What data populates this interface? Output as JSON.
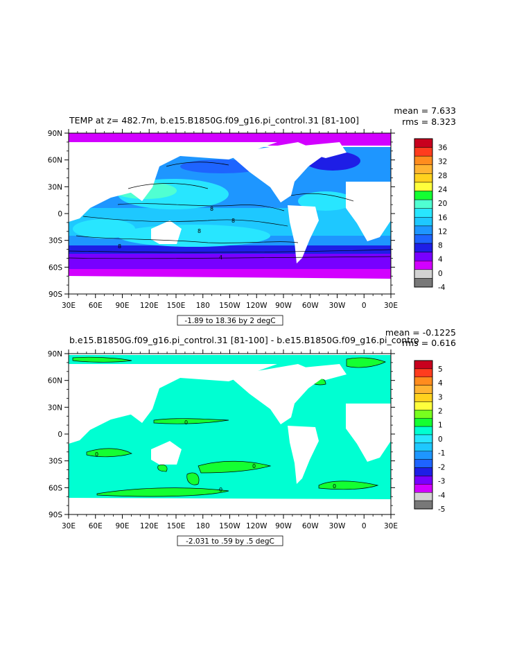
{
  "chart_data": [
    {
      "type": "heatmap",
      "title": "TEMP at z= 482.7m, b.e15.B1850G.f09_g16.pi_control.31 [81-100]",
      "stats": {
        "mean": "mean = 7.633",
        "rms": "rms = 8.323"
      },
      "x_ticks": [
        "30E",
        "60E",
        "90E",
        "120E",
        "150E",
        "180",
        "150W",
        "120W",
        "90W",
        "60W",
        "30W",
        "0",
        "30E"
      ],
      "y_ticks": [
        "90N",
        "60N",
        "30N",
        "0",
        "30S",
        "60S",
        "90S"
      ],
      "xlim": [
        30,
        390
      ],
      "ylim": [
        -90,
        90
      ],
      "contour_info": "-1.89 to 18.36 by 2 degC",
      "colorbar": {
        "labels": [
          "36",
          "32",
          "28",
          "24",
          "20",
          "16",
          "12",
          "8",
          "4",
          "0",
          "-4"
        ],
        "colors": [
          "#c8001e",
          "#ff3c1e",
          "#ff8c1e",
          "#ffb432",
          "#ffd21e",
          "#ffff3c",
          "#14ff32",
          "#50ffd2",
          "#28e6ff",
          "#1ec8ff",
          "#1e96ff",
          "#1e64ff",
          "#1e1ee6",
          "#7800ff",
          "#d200ff",
          "#d2d2d2",
          "#787878"
        ]
      },
      "contour_labels": [
        "8",
        "8",
        "8",
        "8",
        "4"
      ]
    },
    {
      "type": "heatmap",
      "title": "b.e15.B1850G.f09_g16.pi_control.31 [81-100] - b.e15.B1850G.f09_g16.pi_contro",
      "stats": {
        "mean": "mean = -0.1225",
        "rms": "rms = 0.616"
      },
      "x_ticks": [
        "30E",
        "60E",
        "90E",
        "120E",
        "150E",
        "180",
        "150W",
        "120W",
        "90W",
        "60W",
        "30W",
        "0",
        "30E"
      ],
      "y_ticks": [
        "90N",
        "60N",
        "30N",
        "0",
        "30S",
        "60S",
        "90S"
      ],
      "xlim": [
        30,
        390
      ],
      "ylim": [
        -90,
        90
      ],
      "contour_info": "-2.031 to .59 by .5 degC",
      "colorbar": {
        "labels": [
          "5",
          "4",
          "3",
          "2",
          "1",
          "0",
          "-1",
          "-2",
          "-3",
          "-4",
          "-5"
        ],
        "colors": [
          "#c8001e",
          "#ff3c1e",
          "#ff8c1e",
          "#ffb432",
          "#ffd21e",
          "#ffff3c",
          "#78ff1e",
          "#14ff32",
          "#00ffd2",
          "#28e6ff",
          "#1ec8ff",
          "#1e96ff",
          "#1e64ff",
          "#1e1ee6",
          "#7800ff",
          "#d200ff",
          "#d2d2d2",
          "#787878"
        ]
      },
      "contour_labels": [
        "0",
        "0",
        "0",
        "0",
        "0"
      ]
    }
  ]
}
